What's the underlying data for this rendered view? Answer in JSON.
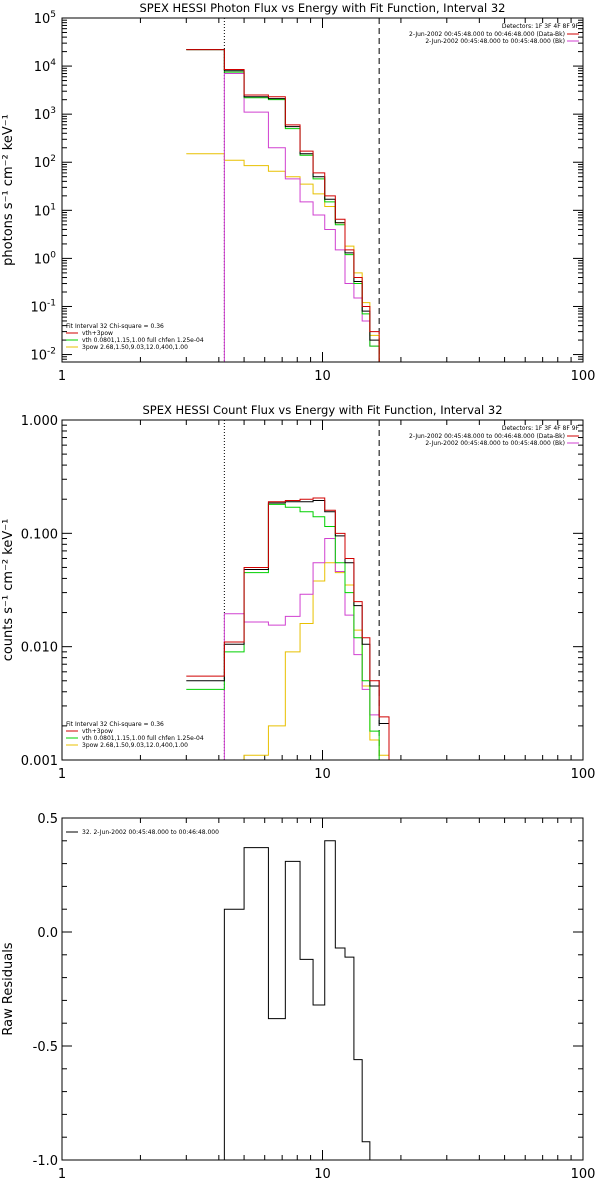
{
  "colors": {
    "total": "#d00000",
    "thermal": "#00d000",
    "power": "#e8c000",
    "background": "#d040d0",
    "data": "#000000"
  },
  "chart_data": [
    {
      "type": "line",
      "title": "SPEX HESSI Photon Flux vs Energy with Fit Function, Interval 32",
      "ylabel": "photons s⁻¹ cm⁻² keV⁻¹",
      "xscale": "log",
      "yscale": "log",
      "xlim": [
        1,
        100
      ],
      "ylim": [
        0.007,
        100000
      ],
      "x_ticks": [
        {
          "v": 1,
          "label": "1"
        },
        {
          "v": 10,
          "label": "10"
        },
        {
          "v": 100,
          "label": "100"
        }
      ],
      "y_ticks": [
        {
          "v": 0.01,
          "mant": "10",
          "exp": "-2"
        },
        {
          "v": 0.1,
          "mant": "10",
          "exp": "-1"
        },
        {
          "v": 1,
          "mant": "10",
          "exp": "0"
        },
        {
          "v": 10,
          "mant": "10",
          "exp": "1"
        },
        {
          "v": 100,
          "mant": "10",
          "exp": "2"
        },
        {
          "v": 1000,
          "mant": "10",
          "exp": "3"
        },
        {
          "v": 10000,
          "mant": "10",
          "exp": "4"
        },
        {
          "v": 100000,
          "mant": "10",
          "exp": "5"
        }
      ],
      "vlines": [
        {
          "x": 4.2,
          "style": "dotted"
        },
        {
          "x": 16.5,
          "style": "dashed"
        }
      ],
      "edges": [
        3.0,
        4.2,
        5.0,
        6.2,
        7.2,
        8.2,
        9.2,
        10.2,
        11.2,
        12.2,
        13.2,
        14.2,
        15.2,
        16.5,
        18.0
      ],
      "series": [
        {
          "role": "total",
          "values": [
            22000,
            8500,
            2500,
            2300,
            600,
            170,
            60,
            20,
            6.5,
            1.5,
            0.4,
            0.1,
            0.03,
            0.007
          ],
          "name": "vth+3pow"
        },
        {
          "role": "data",
          "values": [
            22000,
            8000,
            2300,
            2100,
            550,
            150,
            50,
            17,
            5.5,
            1.3,
            0.33,
            0.08,
            0.02,
            0.006
          ]
        },
        {
          "role": "thermal",
          "values": [
            22000,
            7500,
            2200,
            2000,
            500,
            140,
            45,
            15,
            5,
            1.2,
            0.3,
            0.07,
            0.015,
            0.005
          ],
          "name": "vth 0.0801,1.15,1.00  full chfen 1.25e-04"
        },
        {
          "role": "background",
          "values": null,
          "segments": [
            {
              "x0": 4.2,
              "x1": 5.0,
              "v": 7000
            },
            {
              "x0": 5.0,
              "x1": 6.2,
              "v": 1100
            },
            {
              "x0": 6.2,
              "x1": 7.2,
              "v": 200
            },
            {
              "x0": 7.2,
              "x1": 8.2,
              "v": 45
            },
            {
              "x0": 8.2,
              "x1": 9.2,
              "v": 15
            },
            {
              "x0": 9.2,
              "x1": 10.2,
              "v": 8
            },
            {
              "x0": 10.2,
              "x1": 11.2,
              "v": 4
            },
            {
              "x0": 11.2,
              "x1": 12.2,
              "v": 1.5
            },
            {
              "x0": 12.2,
              "x1": 13.2,
              "v": 0.3
            },
            {
              "x0": 13.2,
              "x1": 14.2,
              "v": 0.15
            },
            {
              "x0": 14.2,
              "x1": 15.2,
              "v": 0.05
            },
            {
              "x0": 15.2,
              "x1": 16.5,
              "v": 0.015
            }
          ]
        },
        {
          "role": "power",
          "values": [
            150,
            110,
            85,
            65,
            50,
            35,
            22,
            12,
            5.5,
            1.8,
            0.5,
            0.12,
            0.025,
            0.006
          ],
          "name": "3pow 2.68,1.50,9.03,12.0,400,1.00"
        }
      ],
      "legend_left": {
        "header": "Fit Interval 32   Chi-square = 0.36",
        "items": [
          "vth+3pow",
          "vth 0.0801,1.15,1.00  full chfen 1.25e-04",
          "3pow 2.68,1.50,9.03,12.0,400,1.00"
        ]
      },
      "legend_right": {
        "header": "Detectors: 1F 3F 4F 8F 9F",
        "items": [
          "2-Jun-2002 00:45:48.000 to 00:46:48.000 (Data-Bk)",
          "2-Jun-2002 00:45:48.000 to 00:45:48.000 (Bk)"
        ]
      }
    },
    {
      "type": "line",
      "title": "SPEX HESSI Count Flux vs Energy with Fit Function, Interval 32",
      "ylabel": "counts s⁻¹ cm⁻² keV⁻¹",
      "xscale": "log",
      "yscale": "log",
      "xlim": [
        1,
        100
      ],
      "ylim": [
        0.001,
        1.0
      ],
      "x_ticks": [
        {
          "v": 1,
          "label": "1"
        },
        {
          "v": 10,
          "label": "10"
        },
        {
          "v": 100,
          "label": "100"
        }
      ],
      "y_ticks": [
        {
          "v": 0.001,
          "label": "0.001"
        },
        {
          "v": 0.01,
          "label": "0.010"
        },
        {
          "v": 0.1,
          "label": "0.100"
        },
        {
          "v": 1.0,
          "label": "1.000"
        }
      ],
      "vlines": [
        {
          "x": 4.2,
          "style": "dotted"
        },
        {
          "x": 16.5,
          "style": "dashed"
        }
      ],
      "edges": [
        3.0,
        4.2,
        5.0,
        6.2,
        7.2,
        8.2,
        9.2,
        10.2,
        11.2,
        12.2,
        13.2,
        14.2,
        15.2,
        16.5,
        18.0
      ],
      "series": [
        {
          "role": "total",
          "values": [
            0.0055,
            0.011,
            0.05,
            0.19,
            0.195,
            0.2,
            0.205,
            0.16,
            0.1,
            0.06,
            0.025,
            0.012,
            0.005,
            0.0024
          ],
          "name": "vth+3pow"
        },
        {
          "role": "data",
          "values": [
            0.005,
            0.0105,
            0.048,
            0.185,
            0.19,
            0.19,
            0.195,
            0.155,
            0.095,
            0.055,
            0.023,
            0.0105,
            0.0045,
            0.0021
          ]
        },
        {
          "role": "thermal",
          "values": [
            0.0042,
            0.009,
            0.045,
            0.18,
            0.17,
            0.155,
            0.14,
            0.115,
            0.055,
            0.03,
            0.012,
            0.005,
            0.0018,
            0.001
          ],
          "name": "vth 0.0801,1.15,1.00  full chfen 1.25e-04"
        },
        {
          "role": "background",
          "values": null,
          "segments": [
            {
              "x0": 4.2,
              "x1": 5.0,
              "v": 0.0195
            },
            {
              "x0": 5.0,
              "x1": 6.2,
              "v": 0.0165
            },
            {
              "x0": 6.2,
              "x1": 7.2,
              "v": 0.0155
            },
            {
              "x0": 7.2,
              "x1": 8.2,
              "v": 0.0185
            },
            {
              "x0": 8.2,
              "x1": 9.2,
              "v": 0.029
            },
            {
              "x0": 9.2,
              "x1": 10.2,
              "v": 0.055
            },
            {
              "x0": 10.2,
              "x1": 11.2,
              "v": 0.09
            },
            {
              "x0": 11.2,
              "x1": 12.2,
              "v": 0.046
            },
            {
              "x0": 12.2,
              "x1": 13.2,
              "v": 0.019
            },
            {
              "x0": 13.2,
              "x1": 14.2,
              "v": 0.0085
            },
            {
              "x0": 14.2,
              "x1": 15.2,
              "v": 0.0042
            },
            {
              "x0": 15.2,
              "x1": 16.5,
              "v": 0.0025
            }
          ]
        },
        {
          "role": "power",
          "values": [
            null,
            0.001,
            0.0011,
            0.002,
            0.009,
            0.016,
            0.038,
            0.055,
            0.045,
            0.035,
            0.014,
            0.0045,
            0.0015,
            0.0011
          ],
          "name": "3pow 2.68,1.50,9.03,12.0,400,1.00"
        }
      ],
      "legend_left": {
        "header": "Fit Interval 32   Chi-square = 0.36",
        "items": [
          "vth+3pow",
          "vth 0.0801,1.15,1.00  full chfen 1.25e-04",
          "3pow 2.68,1.50,9.03,12.0,400,1.00"
        ]
      },
      "legend_right": {
        "header": "Detectors: 1F 3F 4F 8F 9F",
        "items": [
          "2-Jun-2002 00:45:48.000 to 00:46:48.000 (Data-Bk)",
          "2-Jun-2002 00:45:48.000 to 00:45:48.000 (Bk)"
        ]
      }
    },
    {
      "type": "line",
      "title": "",
      "ylabel": "Raw Residuals",
      "xscale": "log",
      "yscale": "linear",
      "xlim": [
        1,
        100
      ],
      "ylim": [
        -1.0,
        0.5
      ],
      "x_ticks": [
        {
          "v": 1,
          "label": "1"
        },
        {
          "v": 10,
          "label": "10"
        },
        {
          "v": 100,
          "label": "100"
        }
      ],
      "y_ticks": [
        {
          "v": -1.0,
          "label": "-1.0"
        },
        {
          "v": -0.5,
          "label": "-0.5"
        },
        {
          "v": 0.0,
          "label": "0.0"
        },
        {
          "v": 0.5,
          "label": "0.5"
        }
      ],
      "edges": [
        4.2,
        5.0,
        6.2,
        7.2,
        8.2,
        9.2,
        10.2,
        11.2,
        12.2,
        13.2,
        14.2,
        15.2,
        16.5
      ],
      "series": [
        {
          "role": "data",
          "values": [
            0.1,
            0.37,
            -0.38,
            0.31,
            -0.12,
            -0.32,
            0.4,
            -0.07,
            -0.11,
            -0.56,
            -0.92,
            -1.0
          ],
          "name": "32.  2-Jun-2002 00:45:48.000 to 00:46:48.000",
          "drop_to_min_at_start": true
        }
      ],
      "legend_left": {
        "header": "",
        "items": [
          "32.  2-Jun-2002 00:45:48.000 to 00:46:48.000"
        ]
      }
    }
  ]
}
